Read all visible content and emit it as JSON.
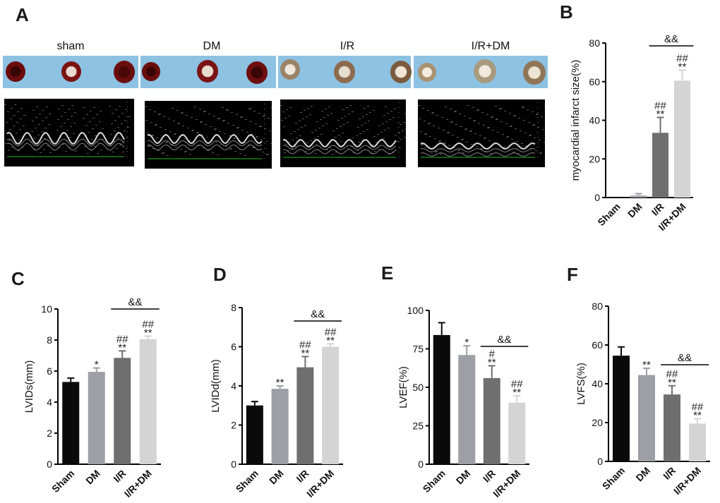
{
  "panel_a": {
    "letter": "A",
    "groups": [
      {
        "label": "sham",
        "heart_colors": [
          "#6b0d0d",
          "#7a1212",
          "#6a0e0e"
        ],
        "heart_core": [
          "#3a0505",
          "#e8d8d0",
          "#4a0808"
        ]
      },
      {
        "label": "DM",
        "heart_colors": [
          "#6a0d0d",
          "#7a1414",
          "#6d0f0f"
        ],
        "heart_core": [
          "#3a0505",
          "#e6dccf",
          "#3a0505"
        ]
      },
      {
        "label": "I/R",
        "heart_colors": [
          "#9a8366",
          "#8c6a4e",
          "#7b5a3e"
        ],
        "heart_core": [
          "#f0e8dc",
          "#e6dccf",
          "#efe6d8"
        ]
      },
      {
        "label": "I/R+DM",
        "heart_colors": [
          "#a99272",
          "#a89a7e",
          "#8f7657"
        ],
        "heart_core": [
          "#f2ecdf",
          "#f0e9dc",
          "#ede4d4"
        ]
      }
    ],
    "photo_background": "#8dc2e3",
    "echo_trace_color": "#d9d9d9",
    "echo_ecg_color": "#22bb22"
  },
  "colors": {
    "Sham": "#0a0a0a",
    "DM": "#9e9ea6",
    "I/R": "#6f6f70",
    "I/R+DM": "#d4d4d4"
  },
  "chart_data": [
    {
      "panel": "B",
      "type": "bar",
      "categories": [
        "Sham",
        "DM",
        "I/R",
        "I/R+DM"
      ],
      "values": [
        0,
        1,
        33.5,
        60.5
      ],
      "errors": [
        0,
        1,
        8,
        5.5
      ],
      "ylabel": "myocardial infarct size(%)",
      "ylim": [
        0,
        80
      ],
      "yticks": [
        0,
        20,
        40,
        60,
        80
      ],
      "annotations": [
        "",
        "",
        "**",
        "**"
      ],
      "annotations2": [
        "",
        "",
        "##",
        "##"
      ],
      "bracket": {
        "from": 2,
        "to": 3,
        "label": "&&"
      }
    },
    {
      "panel": "C",
      "type": "bar",
      "categories": [
        "Sham",
        "DM",
        "I/R",
        "I/R+DM"
      ],
      "values": [
        5.3,
        5.95,
        6.85,
        8.05
      ],
      "errors": [
        0.25,
        0.25,
        0.45,
        0.2
      ],
      "ylabel": "LVIDs(mm)",
      "ylim": [
        0,
        10
      ],
      "yticks": [
        0,
        2,
        4,
        6,
        8,
        10
      ],
      "annotations": [
        "",
        "*",
        "**",
        "**"
      ],
      "annotations2": [
        "",
        "",
        "##",
        "##"
      ],
      "bracket": {
        "from": 2,
        "to": 3,
        "label": "&&"
      }
    },
    {
      "panel": "D",
      "type": "bar",
      "categories": [
        "Sham",
        "DM",
        "I/R",
        "I/R+DM"
      ],
      "values": [
        3.0,
        3.85,
        4.95,
        6.0
      ],
      "errors": [
        0.2,
        0.15,
        0.55,
        0.15
      ],
      "ylabel": "LVIDd(mm)",
      "ylim": [
        0,
        8
      ],
      "yticks": [
        0,
        2,
        4,
        6,
        8
      ],
      "annotations": [
        "",
        "**",
        "**",
        "**"
      ],
      "annotations2": [
        "",
        "",
        "##",
        "##"
      ],
      "bracket": {
        "from": 2,
        "to": 3,
        "label": "&&"
      }
    },
    {
      "panel": "E",
      "type": "bar",
      "categories": [
        "Sham",
        "DM",
        "I/R",
        "I/R+DM"
      ],
      "values": [
        84,
        71,
        56,
        40
      ],
      "errors": [
        8,
        6,
        8,
        4.5
      ],
      "ylabel": "LVEF(%)",
      "ylim": [
        0,
        100
      ],
      "yticks": [
        0,
        25,
        50,
        75,
        100
      ],
      "annotations": [
        "",
        "*",
        "**",
        "**"
      ],
      "annotations2": [
        "",
        "",
        "#",
        "##"
      ],
      "bracket": {
        "from": 2,
        "to": 3,
        "label": "&&"
      }
    },
    {
      "panel": "F",
      "type": "bar",
      "categories": [
        "Sham",
        "DM",
        "I/R",
        "I/R+DM"
      ],
      "values": [
        54.5,
        44.5,
        34.5,
        19.5
      ],
      "errors": [
        4.5,
        3.5,
        4.5,
        2.5
      ],
      "ylabel": "LVFS(%)",
      "ylim": [
        0,
        80
      ],
      "yticks": [
        0,
        20,
        40,
        60,
        80
      ],
      "annotations": [
        "",
        "**",
        "**",
        "**"
      ],
      "annotations2": [
        "",
        "",
        "##",
        "##"
      ],
      "bracket": {
        "from": 2,
        "to": 3,
        "label": "&&"
      }
    }
  ]
}
